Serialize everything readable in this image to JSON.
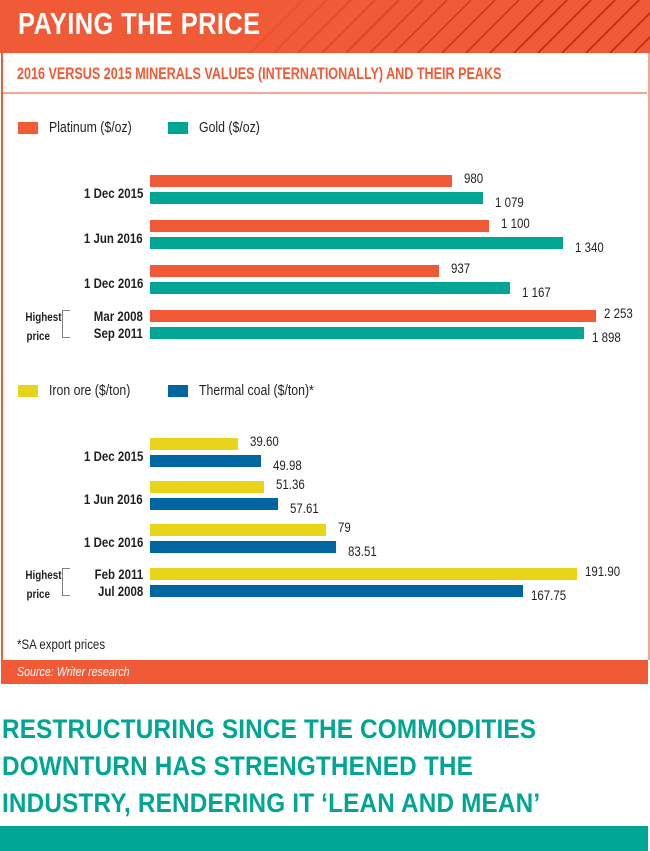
{
  "header": {
    "title": "PAYING THE PRICE"
  },
  "subtitle": "2016 VERSUS 2015 MINERALS VALUES (INTERNATIONALLY) AND THEIR PEAKS",
  "colors": {
    "platinum": "#f15a36",
    "gold": "#00a693",
    "iron_ore": "#e8d419",
    "thermal_coal": "#0066a1",
    "accent": "#f15a36"
  },
  "peak_label": {
    "line1": "Highest",
    "line2": "price"
  },
  "chart_data": [
    {
      "type": "bar",
      "orientation": "horizontal",
      "title": "2016 VERSUS 2015 MINERALS VALUES (INTERNATIONALLY) AND THEIR PEAKS",
      "categories": [
        "1 Dec 2015",
        "1 Jun 2016",
        "1 Dec 2016",
        "Highest price"
      ],
      "category_labels": [
        [
          "1 Dec 2015"
        ],
        [
          "1 Jun 2016"
        ],
        [
          "1 Dec 2016"
        ],
        [
          "Mar 2008",
          "Sep 2011"
        ]
      ],
      "series": [
        {
          "name": "Platinum ($/oz)",
          "values": [
            980,
            1100,
            937,
            2253
          ],
          "labels": [
            "980",
            "1 100",
            "937",
            "2 253"
          ]
        },
        {
          "name": "Gold ($/oz)",
          "values": [
            1079,
            1340,
            1167,
            1898
          ],
          "labels": [
            "1 079",
            "1 340",
            "1 167",
            "1 898"
          ]
        }
      ],
      "legend": "top-left",
      "grid": false
    },
    {
      "type": "bar",
      "orientation": "horizontal",
      "categories": [
        "1 Dec 2015",
        "1 Jun 2016",
        "1 Dec 2016",
        "Highest price"
      ],
      "category_labels": [
        [
          "1 Dec 2015"
        ],
        [
          "1 Jun 2016"
        ],
        [
          "1 Dec 2016"
        ],
        [
          "Feb 2011",
          "Jul 2008"
        ]
      ],
      "series": [
        {
          "name": "Iron ore ($/ton)",
          "values": [
            39.6,
            51.36,
            79,
            191.9
          ],
          "labels": [
            "39.60",
            "51.36",
            "79",
            "191.90"
          ]
        },
        {
          "name": "Thermal coal ($/ton)*",
          "values": [
            49.98,
            57.61,
            83.51,
            167.75
          ],
          "labels": [
            "49.98",
            "57.61",
            "83.51",
            "167.75"
          ]
        }
      ],
      "legend": "top-left",
      "grid": false
    }
  ],
  "footnote": "*SA export prices",
  "source": "Source: Writer research",
  "pull_quote": {
    "lines": [
      "RESTRUCTURING SINCE THE COMMODITIES",
      "DOWNTURN HAS STRENGTHENED THE",
      "INDUSTRY, RENDERING IT ‘LEAN AND MEAN’"
    ]
  }
}
